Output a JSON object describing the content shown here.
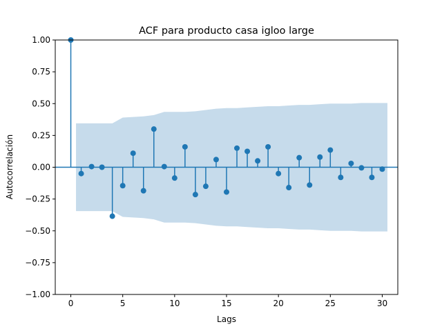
{
  "chart_data": {
    "type": "stem",
    "title": "ACF para producto casa igloo large",
    "xlabel": "Lags",
    "ylabel": "Autocorrelación",
    "xlim": [
      -1.5,
      31.5
    ],
    "ylim": [
      -1.0,
      1.0
    ],
    "x_ticks": [
      0,
      5,
      10,
      15,
      20,
      25,
      30
    ],
    "x_tick_labels": [
      "0",
      "5",
      "10",
      "15",
      "20",
      "25",
      "30"
    ],
    "y_ticks": [
      -1.0,
      -0.75,
      -0.5,
      -0.25,
      0.0,
      0.25,
      0.5,
      0.75,
      1.0
    ],
    "y_tick_labels": [
      "−1.00",
      "−0.75",
      "−0.50",
      "−0.25",
      "0.00",
      "0.25",
      "0.50",
      "0.75",
      "1.00"
    ],
    "lags": [
      0,
      1,
      2,
      3,
      4,
      5,
      6,
      7,
      8,
      9,
      10,
      11,
      12,
      13,
      14,
      15,
      16,
      17,
      18,
      19,
      20,
      21,
      22,
      23,
      24,
      25,
      26,
      27,
      28,
      29,
      30
    ],
    "acf": [
      1.0,
      -0.05,
      0.005,
      0.0,
      -0.385,
      -0.145,
      0.11,
      -0.185,
      0.3,
      0.005,
      -0.085,
      0.16,
      -0.215,
      -0.15,
      0.06,
      -0.195,
      0.15,
      0.125,
      0.05,
      0.16,
      -0.05,
      -0.16,
      0.075,
      -0.14,
      0.08,
      0.135,
      -0.08,
      0.03,
      -0.005,
      -0.08,
      -0.015
    ],
    "confidence_band": {
      "lags": [
        0.5,
        4,
        5,
        6,
        7,
        8,
        9,
        10,
        11,
        12,
        13,
        14,
        15,
        16,
        17,
        18,
        19,
        20,
        21,
        22,
        23,
        24,
        25,
        26,
        27,
        28,
        29,
        30,
        30.5
      ],
      "upper": [
        0.345,
        0.345,
        0.39,
        0.395,
        0.4,
        0.41,
        0.435,
        0.435,
        0.435,
        0.44,
        0.45,
        0.46,
        0.465,
        0.465,
        0.47,
        0.475,
        0.48,
        0.48,
        0.485,
        0.49,
        0.49,
        0.495,
        0.5,
        0.5,
        0.5,
        0.505,
        0.505,
        0.505,
        0.505
      ]
    },
    "colors": {
      "stem": "#1f77b4",
      "band": "#c6dbeb",
      "zero_line": "#1f77b4",
      "axes": "#000000"
    },
    "grid": false,
    "legend": "none"
  }
}
